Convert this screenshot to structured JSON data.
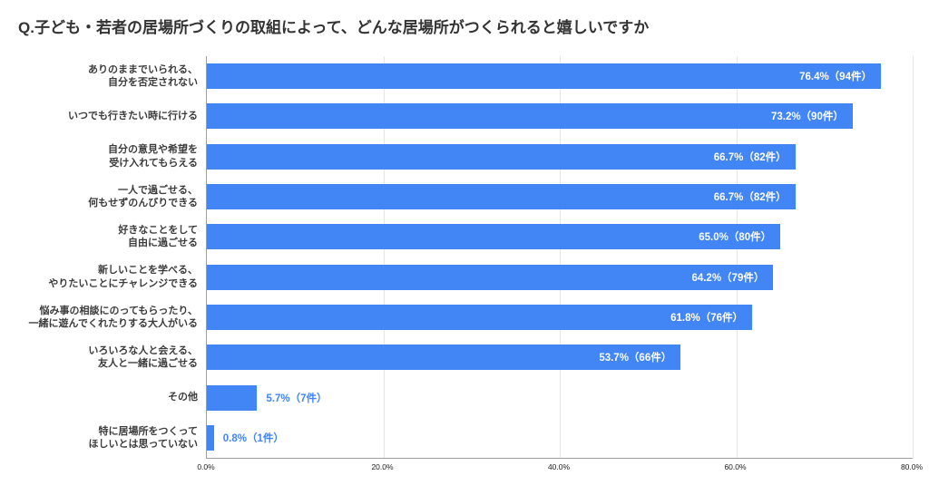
{
  "title": "Q.子ども・若者の居場所づくりの取組によって、どんな居場所がつくられると嬉しいですか",
  "chart_data": {
    "type": "bar",
    "orientation": "horizontal",
    "title": "Q.子ども・若者の居場所づくりの取組によって、どんな居場所がつくられると嬉しいですか",
    "categories": [
      "ありのままでいられる、\n自分を否定されない",
      "いつでも行きたい時に行ける",
      "自分の意見や希望を\n受け入れてもらえる",
      "一人で過ごせる、\n何もせずのんびりできる",
      "好きなことをして\n自由に過ごせる",
      "新しいことを学べる、\nやりたいことにチャレンジできる",
      "悩み事の相談にのってもらったり、\n一緒に遊んでくれたりする大人がいる",
      "いろいろな人と会える、\n友人と一緒に過ごせる",
      "その他",
      "特に居場所をつくって\nほしいとは思っていない"
    ],
    "values": [
      76.4,
      73.2,
      66.7,
      66.7,
      65.0,
      64.2,
      61.8,
      53.7,
      5.7,
      0.8
    ],
    "counts": [
      94,
      90,
      82,
      82,
      80,
      79,
      76,
      66,
      7,
      1
    ],
    "bar_labels": [
      "76.4%（94件）",
      "73.2%（90件）",
      "66.7%（82件）",
      "66.7%（82件）",
      "65.0%（80件）",
      "64.2%（79件）",
      "61.8%（76件）",
      "53.7%（66件）",
      "5.7%（7件）",
      "0.8%（1件）"
    ],
    "xlabel": "",
    "ylabel": "",
    "xlim": [
      0,
      80
    ],
    "x_ticks": [
      "0.0%",
      "20.0%",
      "40.0%",
      "60.0%",
      "80.0%"
    ],
    "grid": "vertical",
    "legend": "none",
    "bar_color": "#4285f4",
    "value_label_inside_color": "#ffffff",
    "value_label_outside_color": "#4285f4",
    "outside_label_threshold_pct": 20
  }
}
